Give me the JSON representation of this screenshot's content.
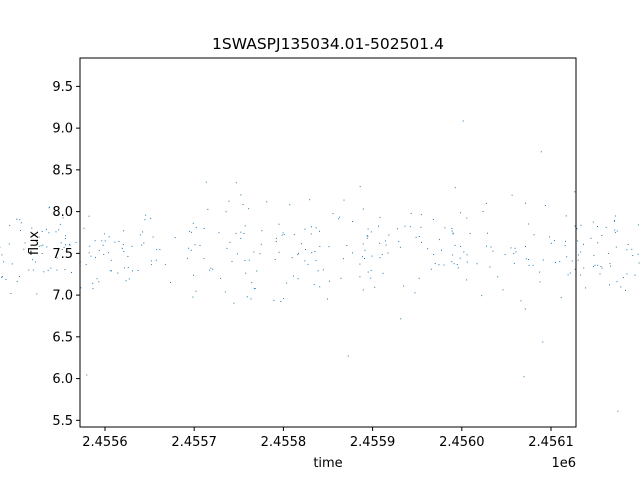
{
  "chart_data": {
    "type": "scatter",
    "title": "1SWASPJ135034.01-502501.4",
    "xlabel": "time",
    "ylabel": "flux",
    "x_offset_label": "1e6",
    "xlim": [
      2.455572,
      2.456128
    ],
    "ylim": [
      5.42,
      9.84
    ],
    "x_ticks": [
      2.4556,
      2.4557,
      2.4558,
      2.4559,
      2.456,
      2.4561
    ],
    "x_tick_labels": [
      "2.4556",
      "2.4557",
      "2.4558",
      "2.4559",
      "2.4560",
      "2.4561"
    ],
    "y_ticks": [
      5.5,
      6.0,
      6.5,
      7.0,
      7.5,
      8.0,
      8.5,
      9.0,
      9.5
    ],
    "y_tick_labels": [
      "5.5",
      "6.0",
      "6.5",
      "7.0",
      "7.5",
      "8.0",
      "8.5",
      "9.0",
      "9.5"
    ],
    "grid": false,
    "marker_color": "#1f77b4",
    "series": [
      {
        "name": "",
        "nights": [
          [
            2.4556,
            7.8
          ],
          [
            2.455605,
            8.0
          ],
          [
            2.45561,
            7.55
          ],
          [
            2.455615,
            7.7
          ],
          [
            2.45562,
            7.75
          ],
          [
            2.455625,
            7.5
          ],
          [
            2.45563,
            7.6
          ],
          [
            2.455635,
            7.4
          ],
          [
            2.45564,
            7.85
          ],
          [
            2.455645,
            7.9
          ],
          [
            2.45565,
            7.7
          ],
          [
            2.455655,
            7.55
          ],
          [
            2.45566,
            7.45
          ],
          [
            2.455665,
            7.55
          ],
          [
            2.45567,
            7.4
          ],
          [
            2.455675,
            7.2
          ],
          [
            2.45568,
            7.35
          ],
          [
            2.455685,
            7.3
          ],
          [
            2.45569,
            7.25
          ],
          [
            2.455695,
            7.45
          ],
          [
            2.4557,
            7.2
          ],
          [
            2.455705,
            7.5
          ],
          [
            2.45571,
            7.8
          ],
          [
            2.455715,
            7.9
          ],
          [
            2.45572,
            7.65
          ],
          [
            2.455725,
            7.55
          ],
          [
            2.45573,
            7.45
          ],
          [
            2.455735,
            7.4
          ],
          [
            2.45574,
            7.6
          ],
          [
            2.455745,
            7.7
          ],
          [
            2.45575,
            7.55
          ],
          [
            2.455755,
            7.75
          ],
          [
            2.45576,
            7.55
          ],
          [
            2.45597,
            7.4
          ],
          [
            2.455975,
            7.7
          ],
          [
            2.45598,
            7.8
          ],
          [
            2.455985,
            7.6
          ],
          [
            2.45599,
            7.55
          ],
          [
            2.455995,
            7.4
          ],
          [
            2.456,
            7.7
          ],
          [
            2.456005,
            7.75
          ],
          [
            2.45601,
            7.65
          ],
          [
            2.456015,
            7.5
          ],
          [
            2.45602,
            7.85
          ],
          [
            2.456025,
            7.7
          ],
          [
            2.45603,
            7.4
          ],
          [
            2.456035,
            7.6
          ],
          [
            2.45604,
            7.6
          ],
          [
            2.456045,
            7.3
          ],
          [
            2.45605,
            7.5
          ],
          [
            2.456055,
            7.6
          ],
          [
            2.45606,
            7.3
          ],
          [
            2.456065,
            7.4
          ],
          [
            2.45607,
            7.7
          ],
          [
            2.456075,
            7.5
          ],
          [
            2.45608,
            7.3
          ],
          [
            2.456085,
            7.4
          ],
          [
            2.45609,
            7.2
          ],
          [
            2.456095,
            7.25
          ],
          [
            2.4561,
            7.3
          ],
          [
            2.456105,
            7.2
          ]
        ]
      }
    ]
  }
}
